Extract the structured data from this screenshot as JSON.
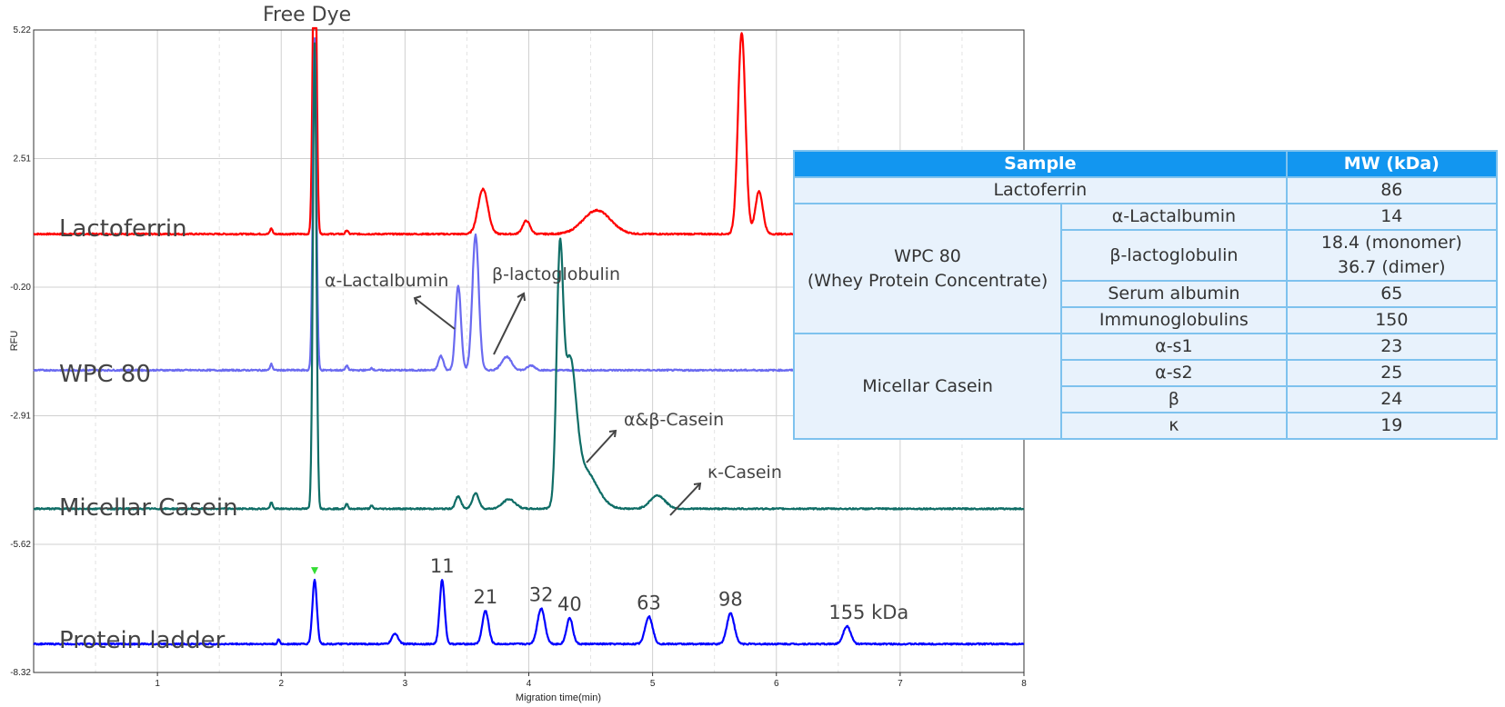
{
  "chart_data": {
    "type": "line",
    "xlabel": "Migration time(min)",
    "ylabel": "RFU",
    "xlim": [
      0,
      8
    ],
    "ylim": [
      -8.32,
      5.22
    ],
    "x_ticks": [
      1,
      2,
      3,
      4,
      5,
      6,
      7,
      8
    ],
    "y_ticks": [
      5.22,
      2.51,
      -0.2,
      -2.91,
      -5.62,
      -8.32
    ],
    "y_tick_labels": [
      "5.22",
      "2.51",
      "-0.20",
      "-2.91",
      "-5.62",
      "-8.32"
    ],
    "grid": true,
    "series": [
      {
        "name": "Lactoferrin",
        "color": "#ff0000",
        "baseline": 0.92,
        "peaks": [
          {
            "x": 1.92,
            "h": 0.12,
            "w": 0.01
          },
          {
            "x": 2.27,
            "h": 8.0,
            "w": 0.014
          },
          {
            "x": 2.53,
            "h": 0.08,
            "w": 0.01
          },
          {
            "x": 3.63,
            "h": 0.95,
            "w": 0.04
          },
          {
            "x": 3.98,
            "h": 0.28,
            "w": 0.03
          },
          {
            "x": 4.55,
            "h": 0.5,
            "w": 0.11
          },
          {
            "x": 5.72,
            "h": 4.25,
            "w": 0.03
          },
          {
            "x": 5.86,
            "h": 0.9,
            "w": 0.03
          }
        ]
      },
      {
        "name": "WPC 80",
        "color": "#6a6af0",
        "baseline": -1.95,
        "peaks": [
          {
            "x": 1.92,
            "h": 0.13,
            "w": 0.01
          },
          {
            "x": 2.27,
            "h": 7.0,
            "w": 0.014
          },
          {
            "x": 2.53,
            "h": 0.1,
            "w": 0.01
          },
          {
            "x": 2.73,
            "h": 0.05,
            "w": 0.01
          },
          {
            "x": 3.29,
            "h": 0.3,
            "w": 0.02
          },
          {
            "x": 3.43,
            "h": 1.78,
            "w": 0.022
          },
          {
            "x": 3.57,
            "h": 2.85,
            "w": 0.026
          },
          {
            "x": 3.82,
            "h": 0.28,
            "w": 0.04
          },
          {
            "x": 4.02,
            "h": 0.1,
            "w": 0.03
          }
        ]
      },
      {
        "name": "Micellar Casein",
        "color": "#0f6d66",
        "baseline": -4.87,
        "peaks": [
          {
            "x": 1.92,
            "h": 0.13,
            "w": 0.01
          },
          {
            "x": 2.27,
            "h": 9.8,
            "w": 0.014
          },
          {
            "x": 2.53,
            "h": 0.1,
            "w": 0.01
          },
          {
            "x": 2.73,
            "h": 0.06,
            "w": 0.01
          },
          {
            "x": 3.43,
            "h": 0.26,
            "w": 0.022
          },
          {
            "x": 3.57,
            "h": 0.33,
            "w": 0.026
          },
          {
            "x": 3.84,
            "h": 0.2,
            "w": 0.05
          },
          {
            "x": 4.25,
            "h": 4.75,
            "w": 0.026
          },
          {
            "x": 4.33,
            "h": 2.8,
            "w": 0.05
          },
          {
            "x": 4.45,
            "h": 0.8,
            "w": 0.1
          },
          {
            "x": 5.04,
            "h": 0.28,
            "w": 0.06
          }
        ]
      },
      {
        "name": "Protein ladder",
        "color": "#0000ff",
        "baseline": -7.72,
        "peaks": [
          {
            "x": 1.98,
            "h": 0.1,
            "w": 0.008
          },
          {
            "x": 2.27,
            "h": 1.35,
            "w": 0.018
          },
          {
            "x": 2.92,
            "h": 0.22,
            "w": 0.025
          },
          {
            "x": 3.3,
            "h": 1.35,
            "w": 0.02
          },
          {
            "x": 3.65,
            "h": 0.7,
            "w": 0.025
          },
          {
            "x": 4.1,
            "h": 0.75,
            "w": 0.03
          },
          {
            "x": 4.33,
            "h": 0.55,
            "w": 0.025
          },
          {
            "x": 4.97,
            "h": 0.58,
            "w": 0.03
          },
          {
            "x": 5.63,
            "h": 0.65,
            "w": 0.03
          },
          {
            "x": 6.57,
            "h": 0.38,
            "w": 0.03
          }
        ]
      }
    ],
    "ladder_labels": [
      {
        "text": "11",
        "x": 3.3
      },
      {
        "text": "21",
        "x": 3.65
      },
      {
        "text": "32",
        "x": 4.1
      },
      {
        "text": "40",
        "x": 4.33
      },
      {
        "text": "63",
        "x": 4.97
      },
      {
        "text": "98",
        "x": 5.63
      },
      {
        "text": "155 kDa",
        "x": 6.57
      }
    ],
    "marker": {
      "x": 2.27,
      "color": "#33dd33"
    }
  },
  "trace_labels": {
    "lactoferrin": "Lactoferrin",
    "wpc80": "WPC 80",
    "micellar_casein": "Micellar Casein",
    "protein_ladder": "Protein ladder"
  },
  "annotations": {
    "free_dye": "Free Dye",
    "alpha_lactalbumin": "α-Lactalbumin",
    "beta_lactoglobulin": "β-lactoglobulin",
    "alpha_beta_casein": "α&β-Casein",
    "kappa_casein": "κ-Casein"
  },
  "table": {
    "header_sample": "Sample",
    "header_mw": "MW (kDa)",
    "lactoferrin": {
      "name": "Lactoferrin",
      "mw": "86"
    },
    "wpc": {
      "group_line1": "WPC 80",
      "group_line2": "(Whey Protein Concentrate)",
      "alpha_lactalbumin": {
        "name": "α-Lactalbumin",
        "mw": "14"
      },
      "beta_lactoglobulin": {
        "name": "β-lactoglobulin",
        "mw_line1": "18.4 (monomer)",
        "mw_line2": "36.7 (dimer)"
      },
      "serum_albumin": {
        "name": "Serum albumin",
        "mw": "65"
      },
      "immunoglobulins": {
        "name": "Immunoglobulins",
        "mw": "150"
      }
    },
    "casein": {
      "group": "Micellar Casein",
      "alpha_s1": {
        "name": "α-s1",
        "mw": "23"
      },
      "alpha_s2": {
        "name": "α-s2",
        "mw": "25"
      },
      "beta": {
        "name": "β",
        "mw": "24"
      },
      "kappa": {
        "name": "κ",
        "mw": "19"
      }
    }
  },
  "colors": {
    "table_header": "#1296f0",
    "table_border": "#7ec2ee",
    "table_fill": "#e8f2fc",
    "annotation_text": "#444444"
  }
}
